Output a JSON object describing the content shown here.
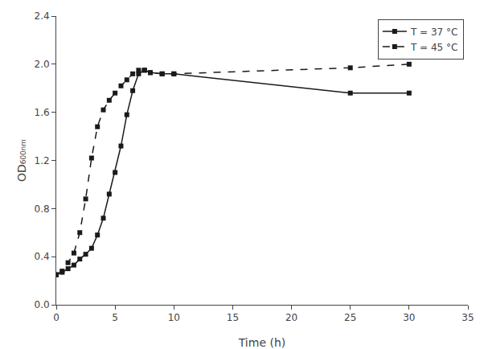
{
  "chart_data": {
    "type": "line",
    "xlabel": "Time (h)",
    "ylabel": "OD₆₀₀ₙₘ",
    "series": [
      {
        "name": "T = 37 °C",
        "color": "#1a1a1a",
        "line_style": "solid",
        "marker": "square",
        "x": [
          0,
          0.5,
          1,
          1.5,
          2,
          2.5,
          3,
          3.5,
          4,
          4.5,
          5,
          5.5,
          6,
          6.5,
          7,
          7.5,
          8,
          9,
          10,
          25,
          30
        ],
        "values": [
          0.25,
          0.27,
          0.3,
          0.33,
          0.38,
          0.42,
          0.47,
          0.58,
          0.72,
          0.92,
          1.1,
          1.32,
          1.58,
          1.78,
          1.92,
          1.95,
          1.93,
          1.92,
          1.92,
          1.76,
          1.76
        ]
      },
      {
        "name": "T = 45 °C",
        "color": "#1a1a1a",
        "line_style": "dashed",
        "marker": "square",
        "x": [
          0,
          0.5,
          1,
          1.5,
          2,
          2.5,
          3,
          3.5,
          4,
          4.5,
          5,
          5.5,
          6,
          6.5,
          7,
          7.5,
          8,
          9,
          10,
          25,
          30
        ],
        "values": [
          0.25,
          0.28,
          0.35,
          0.43,
          0.6,
          0.88,
          1.22,
          1.48,
          1.62,
          1.7,
          1.76,
          1.82,
          1.87,
          1.92,
          1.95,
          1.95,
          1.93,
          1.92,
          1.92,
          1.97,
          2.0
        ]
      }
    ],
    "xlim": [
      0,
      35
    ],
    "ylim": [
      0.0,
      2.4
    ],
    "xticks": [
      0,
      5,
      10,
      15,
      20,
      25,
      30,
      35
    ],
    "yticks": [
      {
        "value": 0,
        "label": "0.0"
      },
      0.4,
      0.8,
      1.2,
      1.6,
      {
        "value": 2,
        "label": "2.0"
      },
      2.4
    ],
    "grid": false,
    "legend": "upper right"
  }
}
